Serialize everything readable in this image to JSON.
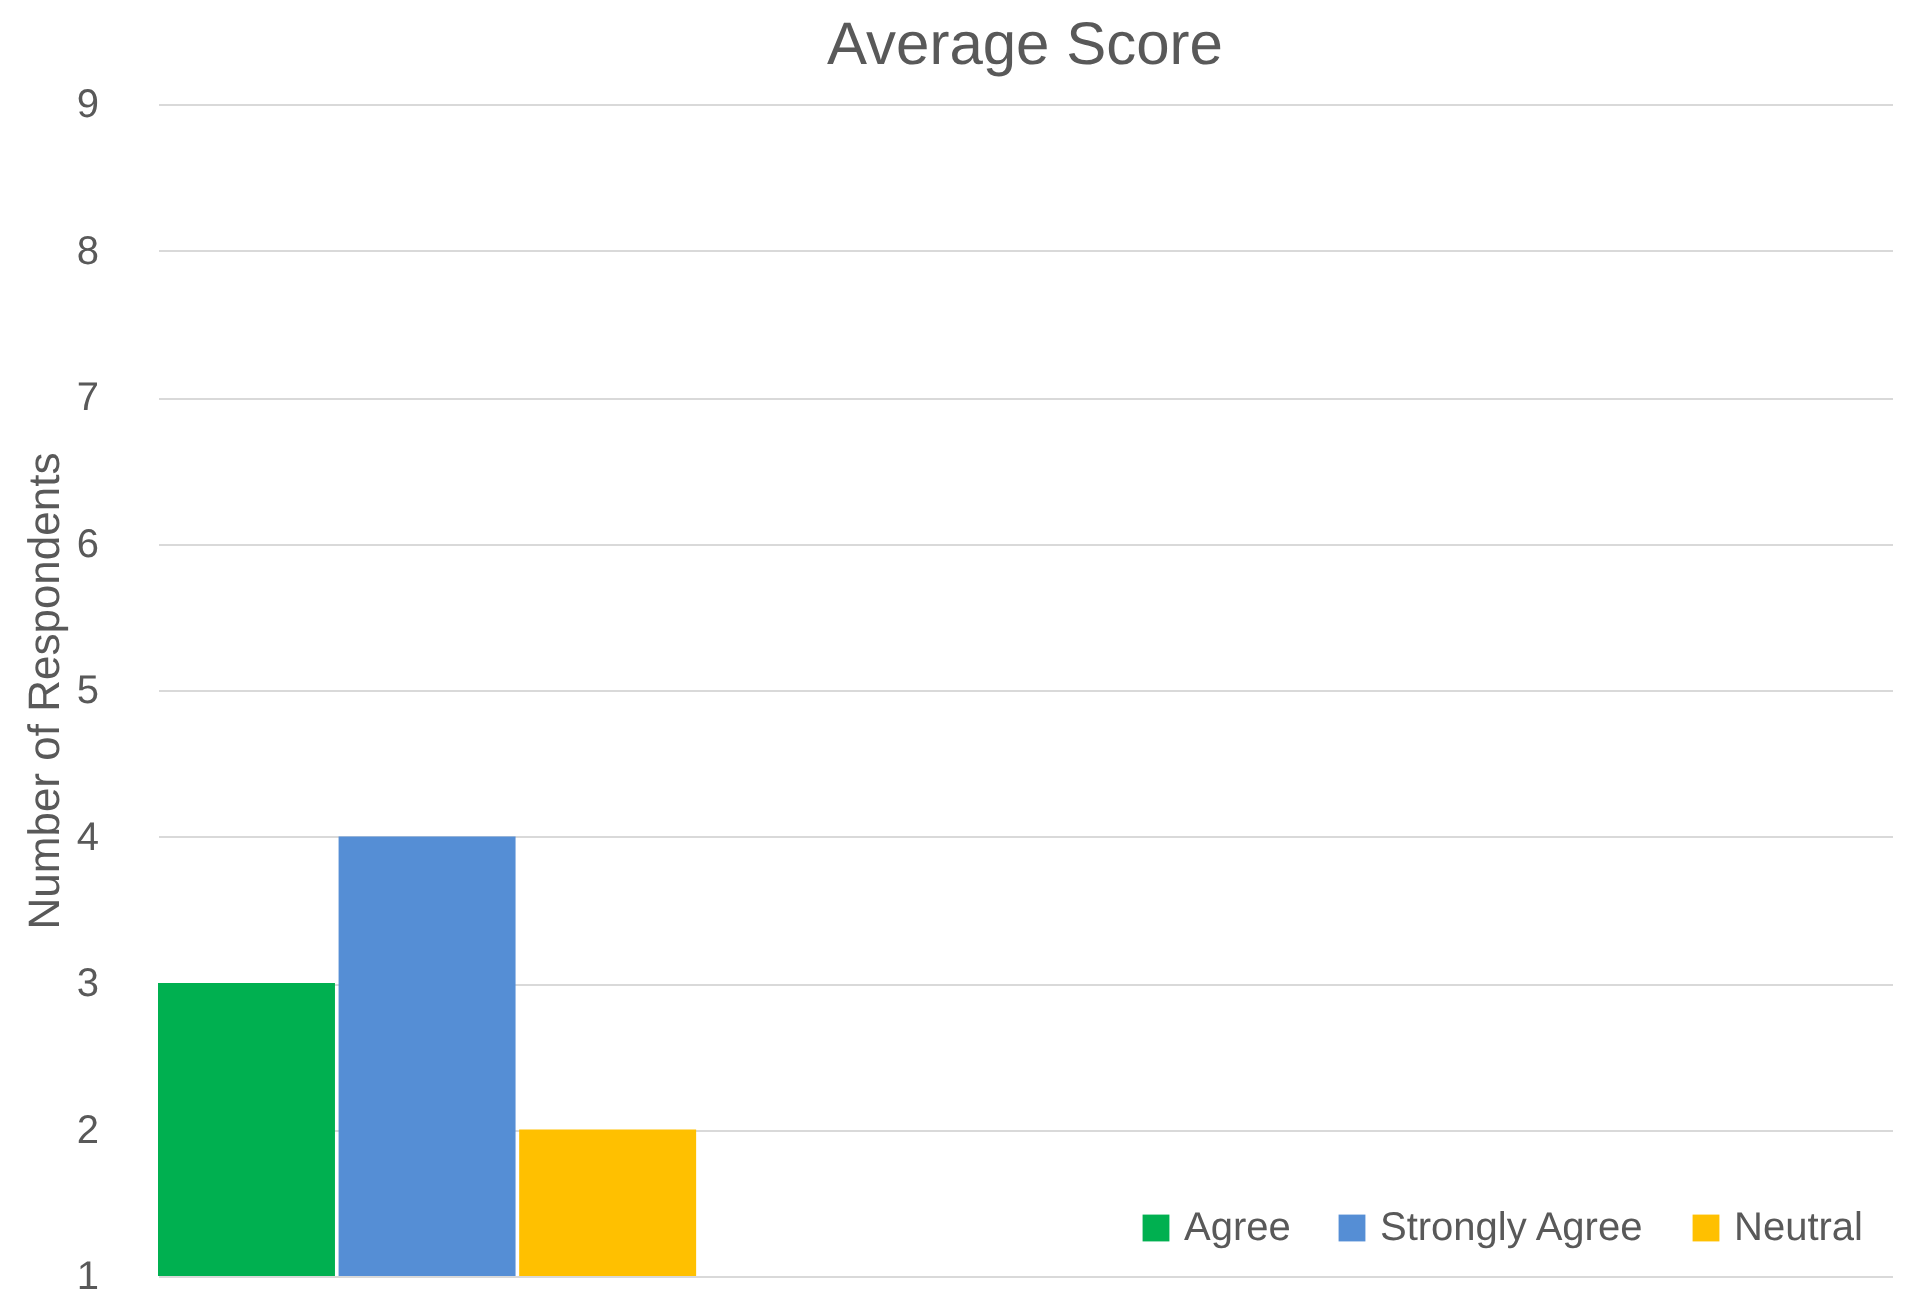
{
  "chart_data": {
    "type": "bar",
    "title": "Average Score",
    "ylabel": "Number of Respondents",
    "categories": [
      null
    ],
    "series": [
      {
        "name": "Agree",
        "color": "#00b050",
        "values": [
          3
        ]
      },
      {
        "name": "Strongly Agree",
        "color": "#558ed5",
        "values": [
          4
        ]
      },
      {
        "name": "Neutral",
        "color": "#ffc000",
        "values": [
          2
        ]
      }
    ],
    "ylim": [
      1,
      9
    ],
    "yticks": [
      1,
      2,
      3,
      4,
      5,
      6,
      7,
      8,
      9
    ],
    "grid": "y",
    "legend": "bottom right"
  }
}
